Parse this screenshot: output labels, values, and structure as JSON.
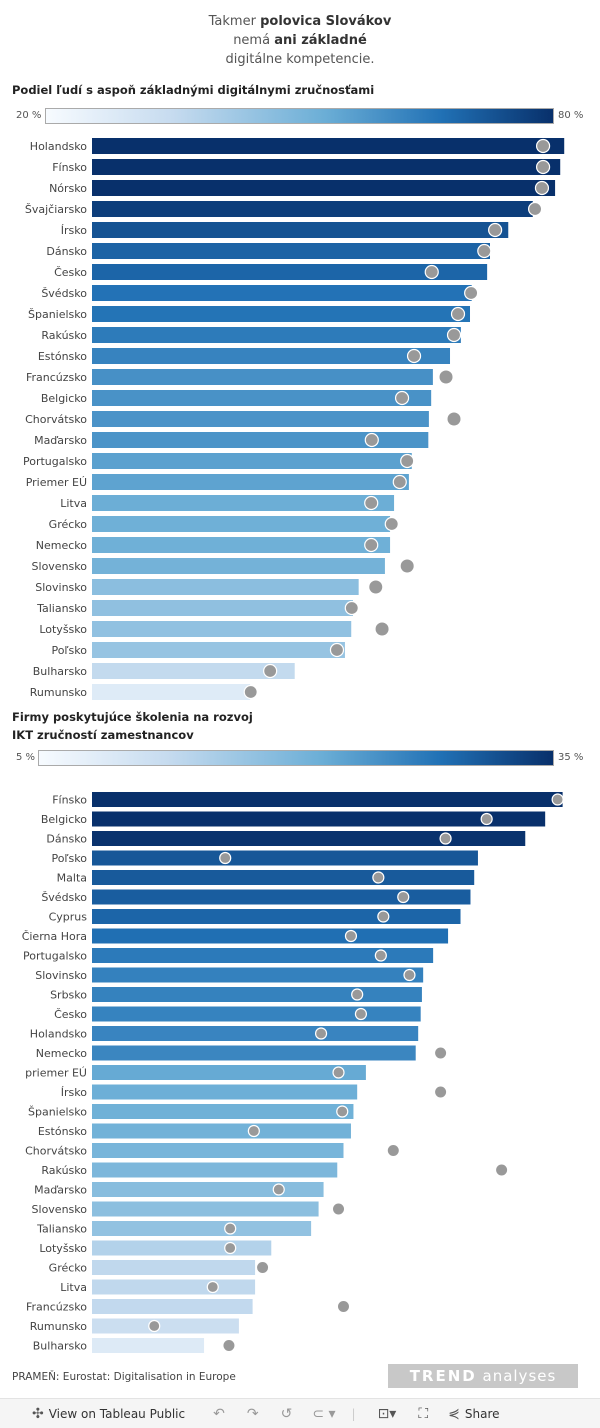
{
  "headline": {
    "line1_pre": "Takmer ",
    "line1_bold": "polovica Slovákov",
    "line2_pre": "nemá ",
    "line2_bold": "ani základné",
    "line3": "digitálne kompetencie."
  },
  "chart_data": [
    {
      "type": "bar",
      "title": "Podiel ľudí s aspoň základnými digitálnymi zručnosťami",
      "legend": {
        "min_label": "20 %",
        "max_label": "80 %",
        "min": 20,
        "max": 80
      },
      "colors": {
        "low": "#f7fbff",
        "high": "#08306b",
        "dot": "#999999"
      },
      "categories": [
        "Holandsko",
        "Fínsko",
        "Nórsko",
        "Švajčiarsko",
        "Írsko",
        "Dánsko",
        "Česko",
        "Švédsko",
        "Španielsko",
        "Rakúsko",
        "Estónsko",
        "Francúzsko",
        "Belgicko",
        "Chorvátsko",
        "Maďarsko",
        "Portugalsko",
        "Priemer EÚ",
        "Litva",
        "Grécko",
        "Nemecko",
        "Slovensko",
        "Slovinsko",
        "Taliansko",
        "Lotyšsko",
        "Poľsko",
        "Bulharsko",
        "Rumunsko"
      ],
      "series": [
        {
          "name": "bar",
          "values": [
            82.7,
            82.0,
            81.1,
            77.2,
            72.9,
            69.7,
            69.2,
            66.5,
            66.2,
            64.6,
            62.7,
            59.7,
            59.4,
            59.0,
            58.9,
            56.0,
            55.5,
            52.9,
            52.2,
            52.2,
            51.3,
            46.7,
            45.7,
            45.4,
            44.3,
            35.5,
            27.7
          ]
        },
        {
          "name": "dot",
          "values": [
            79.0,
            79.0,
            78.8,
            77.6,
            70.6,
            68.7,
            59.5,
            66.4,
            64.1,
            63.4,
            56.4,
            62.0,
            54.3,
            63.4,
            49.0,
            55.2,
            53.9,
            48.9,
            52.5,
            48.9,
            55.2,
            49.7,
            45.5,
            50.8,
            42.9,
            31.2,
            27.8
          ]
        }
      ],
      "xlim": [
        0,
        85
      ]
    },
    {
      "type": "bar",
      "title": "Firmy poskytujúce školenia na rozvoj IKT zručností zamestnancov",
      "title_lines": [
        "Firmy poskytujúce školenia na rozvoj",
        "IKT zručností zamestnancov"
      ],
      "legend": {
        "min_label": "5 %",
        "max_label": "35 %",
        "min": 5,
        "max": 35
      },
      "colors": {
        "low": "#f7fbff",
        "high": "#08306b",
        "dot": "#999999"
      },
      "categories": [
        "Fínsko",
        "Belgicko",
        "Dánsko",
        "Poľsko",
        "Malta",
        "Švédsko",
        "Cyprus",
        "Čierna Hora",
        "Portugalsko",
        "Slovinsko",
        "Srbsko",
        "Česko",
        "Holandsko",
        "Nemecko",
        "priemer EÚ",
        "Írsko",
        "Španielsko",
        "Estónsko",
        "Chorvátsko",
        "Rakúsko",
        "Maďarsko",
        "Slovensko",
        "Taliansko",
        "Lotyšsko",
        "Grécko",
        "Litva",
        "Francúzsko",
        "Rumunsko",
        "Bulharsko"
      ],
      "series": [
        {
          "name": "bar",
          "values": [
            37.8,
            36.4,
            34.8,
            31.0,
            30.7,
            30.4,
            29.6,
            28.6,
            27.4,
            26.6,
            26.5,
            26.4,
            26.2,
            26.0,
            22.0,
            21.3,
            21.0,
            20.8,
            20.2,
            19.7,
            18.6,
            18.2,
            17.6,
            14.4,
            13.1,
            13.1,
            12.9,
            11.8,
            9.0
          ]
        },
        {
          "name": "dot",
          "values": [
            37.4,
            31.7,
            28.4,
            10.7,
            23.0,
            25.0,
            23.4,
            20.8,
            23.2,
            25.5,
            21.3,
            21.6,
            18.4,
            28.0,
            19.8,
            28.0,
            20.1,
            13.0,
            24.2,
            32.9,
            15.0,
            19.8,
            11.1,
            11.1,
            13.7,
            9.7,
            20.2,
            5.0,
            11.0
          ]
        }
      ],
      "xlim": [
        0,
        38
      ]
    }
  ],
  "footer": {
    "source": "PRAMEŇ:  Eurostat: Digitalisation in Europe",
    "logo_bold": "TREND",
    "logo_light": " analyses"
  },
  "toolbar": {
    "view_label": "View on Tableau Public",
    "share_label": "Share",
    "icons": [
      "tableau-icon",
      "undo-icon",
      "redo-icon",
      "revert-icon",
      "refresh-icon",
      "download-icon",
      "fullscreen-icon",
      "share-icon"
    ]
  }
}
